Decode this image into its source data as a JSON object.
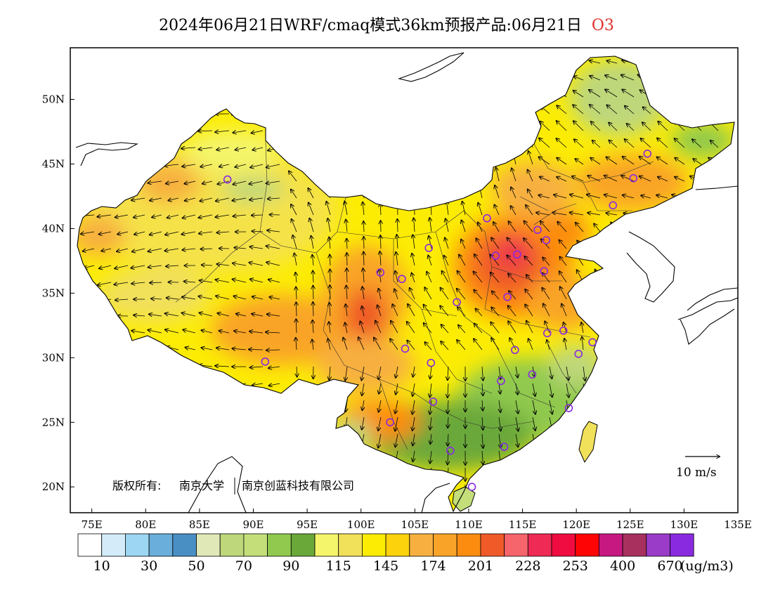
{
  "title": {
    "text": "2024年06月21日WRF/cmaq模式36km预报产品:06月21日",
    "species": "O3",
    "species_color": "#e0302a"
  },
  "map": {
    "lon_range": [
      73,
      135
    ],
    "lat_range": [
      18,
      54
    ],
    "lon_ticks": [
      "75E",
      "80E",
      "85E",
      "90E",
      "95E",
      "100E",
      "105E",
      "110E",
      "115E",
      "120E",
      "125E",
      "130E",
      "135E"
    ],
    "lat_ticks": [
      "20N",
      "25N",
      "30N",
      "35N",
      "40N",
      "45N",
      "50N"
    ],
    "copyright_label": "版权所有:",
    "copyright_org1": "南京大学",
    "copyright_org2": "南京创蓝科技有限公司",
    "wind_reference": "10 m/s"
  },
  "colorbar": {
    "unit": "(ug/m3)",
    "labels": [
      "10",
      "30",
      "50",
      "70",
      "90",
      "115",
      "145",
      "174",
      "201",
      "228",
      "253",
      "400",
      "670"
    ],
    "colors": [
      "#ffffff",
      "#d4ecf9",
      "#9dd6f2",
      "#6aaedb",
      "#4a8fc4",
      "#e0e8b8",
      "#bed77a",
      "#c4df7a",
      "#90c94e",
      "#6aa83a",
      "#f4f56a",
      "#f1e05a",
      "#fcec04",
      "#fbd20c",
      "#f7b040",
      "#f9a428",
      "#fc8c10",
      "#ef5a28",
      "#f6646c",
      "#ee2a55",
      "#f00c40",
      "#fe0404",
      "#c61880",
      "#a8305e",
      "#9a3cc8",
      "#8a2ae0"
    ]
  },
  "stations": [
    {
      "name": "urumqi",
      "lon": 87.6,
      "lat": 43.8
    },
    {
      "name": "lhasa",
      "lon": 91.1,
      "lat": 29.7
    },
    {
      "name": "xining",
      "lon": 101.8,
      "lat": 36.6
    },
    {
      "name": "lanzhou",
      "lon": 103.8,
      "lat": 36.1
    },
    {
      "name": "yinchuan",
      "lon": 106.3,
      "lat": 38.5
    },
    {
      "name": "hohhot",
      "lon": 111.7,
      "lat": 40.8
    },
    {
      "name": "beijing",
      "lon": 116.4,
      "lat": 39.9
    },
    {
      "name": "tianjin",
      "lon": 117.2,
      "lat": 39.1
    },
    {
      "name": "shijiazhuang",
      "lon": 114.5,
      "lat": 38.0
    },
    {
      "name": "taiyuan",
      "lon": 112.5,
      "lat": 37.9
    },
    {
      "name": "jinan",
      "lon": 117.0,
      "lat": 36.7
    },
    {
      "name": "zhengzhou",
      "lon": 113.6,
      "lat": 34.7
    },
    {
      "name": "xian",
      "lon": 108.9,
      "lat": 34.3
    },
    {
      "name": "chengdu",
      "lon": 104.1,
      "lat": 30.7
    },
    {
      "name": "chongqing",
      "lon": 106.5,
      "lat": 29.6
    },
    {
      "name": "wuhan",
      "lon": 114.3,
      "lat": 30.6
    },
    {
      "name": "hefei",
      "lon": 117.3,
      "lat": 31.9
    },
    {
      "name": "nanjing",
      "lon": 118.8,
      "lat": 32.1
    },
    {
      "name": "shanghai",
      "lon": 121.5,
      "lat": 31.2
    },
    {
      "name": "hangzhou",
      "lon": 120.2,
      "lat": 30.3
    },
    {
      "name": "nanchang",
      "lon": 115.9,
      "lat": 28.7
    },
    {
      "name": "changsha",
      "lon": 113.0,
      "lat": 28.2
    },
    {
      "name": "guiyang",
      "lon": 106.7,
      "lat": 26.6
    },
    {
      "name": "kunming",
      "lon": 102.7,
      "lat": 25.0
    },
    {
      "name": "fuzhou",
      "lon": 119.3,
      "lat": 26.1
    },
    {
      "name": "guangzhou",
      "lon": 113.3,
      "lat": 23.1
    },
    {
      "name": "nanning",
      "lon": 108.3,
      "lat": 22.8
    },
    {
      "name": "haikou",
      "lon": 110.3,
      "lat": 20.0
    },
    {
      "name": "shenyang",
      "lon": 123.4,
      "lat": 41.8
    },
    {
      "name": "changchun",
      "lon": 125.3,
      "lat": 43.9
    },
    {
      "name": "harbin",
      "lon": 126.6,
      "lat": 45.8
    }
  ]
}
